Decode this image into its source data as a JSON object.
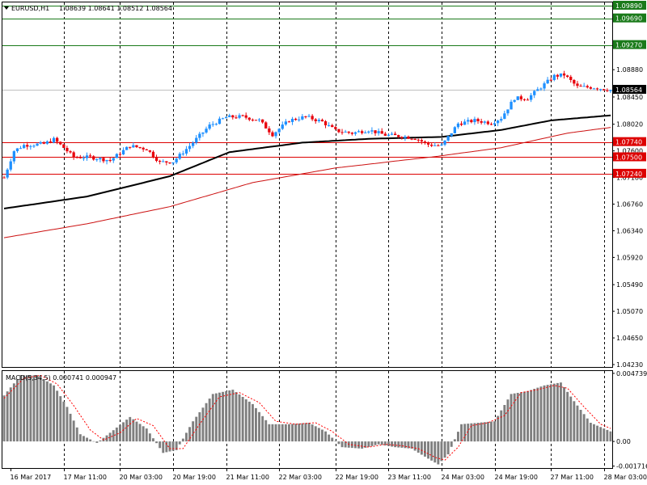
{
  "header": {
    "symbol": "EURUSD,H1",
    "ohlc": "1.08639 1.08641 1.08512 1.08564"
  },
  "macd": {
    "label": "MACD(5,34,5) 0.000741 0.000947"
  },
  "colors": {
    "bull": "#1e90ff",
    "bear": "#e8000b",
    "ma_fast": "#000000",
    "ma_slow": "#cc1111",
    "res_green": "#1a7a1a",
    "sup_red": "#dd0000",
    "histogram": "#7f7f7f",
    "signal": "#ff0000"
  },
  "chart_data": [
    {
      "type": "candlestick",
      "title": "EURUSD,H1",
      "ylim": [
        1.0423,
        1.0989
      ],
      "y_ticks": [
        "1.08880",
        "1.08450",
        "1.08020",
        "1.07600",
        "1.07180",
        "1.06760",
        "1.06340",
        "1.05920",
        "1.05490",
        "1.05070",
        "1.04650",
        "1.04230"
      ],
      "x_ticks": [
        "16 Mar 2017",
        "17 Mar 11:00",
        "20 Mar 03:00",
        "20 Mar 19:00",
        "21 Mar 11:00",
        "22 Mar 03:00",
        "22 Mar 19:00",
        "23 Mar 11:00",
        "24 Mar 03:00",
        "24 Mar 19:00",
        "27 Mar 11:00",
        "28 Mar 03:00"
      ],
      "current_price": "1.08564",
      "levels": [
        {
          "value": 1.0989,
          "label": "1.09890",
          "kind": "resistance"
        },
        {
          "value": 1.0969,
          "label": "1.09690",
          "kind": "resistance"
        },
        {
          "value": 1.0927,
          "label": "1.09270",
          "kind": "resistance"
        },
        {
          "value": 1.0774,
          "label": "1.07740",
          "kind": "support"
        },
        {
          "value": 1.075,
          "label": "1.07500",
          "kind": "support"
        },
        {
          "value": 1.0724,
          "label": "1.07240",
          "kind": "support"
        }
      ],
      "close_path": [
        [
          0,
          1.0718
        ],
        [
          3,
          1.076
        ],
        [
          6,
          1.0769
        ],
        [
          12,
          1.0771
        ],
        [
          15,
          1.0778
        ],
        [
          18,
          1.0765
        ],
        [
          21,
          1.075
        ],
        [
          26,
          1.075
        ],
        [
          32,
          1.0745
        ],
        [
          38,
          1.0768
        ],
        [
          43,
          1.0763
        ],
        [
          47,
          1.0742
        ],
        [
          51,
          1.0743
        ],
        [
          56,
          1.0768
        ],
        [
          62,
          1.08
        ],
        [
          67,
          1.0813
        ],
        [
          72,
          1.0814
        ],
        [
          77,
          1.0808
        ],
        [
          81,
          1.0786
        ],
        [
          86,
          1.0808
        ],
        [
          91,
          1.0814
        ],
        [
          96,
          1.0806
        ],
        [
          100,
          1.0792
        ],
        [
          105,
          1.0788
        ],
        [
          110,
          1.0793
        ],
        [
          115,
          1.0785
        ],
        [
          120,
          1.0783
        ],
        [
          124,
          1.078
        ],
        [
          128,
          1.077
        ],
        [
          132,
          1.0768
        ],
        [
          137,
          1.0803
        ],
        [
          142,
          1.0808
        ],
        [
          147,
          1.0804
        ],
        [
          150,
          1.0812
        ],
        [
          154,
          1.0843
        ],
        [
          158,
          1.0843
        ],
        [
          163,
          1.0865
        ],
        [
          166,
          1.0878
        ],
        [
          169,
          1.088
        ],
        [
          173,
          1.0861
        ],
        [
          178,
          1.086
        ],
        [
          183,
          1.0856
        ]
      ],
      "moving_averages": [
        {
          "color_key": "ma_fast",
          "values": [
            [
              0,
              1.0669
            ],
            [
              25,
              1.0688
            ],
            [
              50,
              1.072
            ],
            [
              68,
              1.0758
            ],
            [
              90,
              1.0773
            ],
            [
              110,
              1.0779
            ],
            [
              132,
              1.0782
            ],
            [
              150,
              1.0793
            ],
            [
              165,
              1.0808
            ],
            [
              183,
              1.0816
            ]
          ]
        },
        {
          "color_key": "ma_slow",
          "values": [
            [
              0,
              1.0623
            ],
            [
              25,
              1.0645
            ],
            [
              50,
              1.0672
            ],
            [
              75,
              1.071
            ],
            [
              100,
              1.0733
            ],
            [
              130,
              1.0751
            ],
            [
              150,
              1.0765
            ],
            [
              170,
              1.0788
            ],
            [
              183,
              1.0797
            ]
          ]
        }
      ]
    },
    {
      "type": "bar",
      "title": "MACD(5,34,5) 0.000741 0.000947",
      "ylim": [
        -0.00185,
        0.0049
      ],
      "y_ticks": [
        "0.004739",
        "0.00",
        "-0.001716"
      ],
      "histogram_path": [
        [
          0,
          0.0032
        ],
        [
          5,
          0.0046
        ],
        [
          10,
          0.0046
        ],
        [
          15,
          0.0039
        ],
        [
          19,
          0.0024
        ],
        [
          23,
          0.0005
        ],
        [
          28,
          -0.0001
        ],
        [
          32,
          0.0006
        ],
        [
          38,
          0.0017
        ],
        [
          43,
          0.0009
        ],
        [
          48,
          -0.0008
        ],
        [
          52,
          -0.0006
        ],
        [
          57,
          0.0014
        ],
        [
          63,
          0.0033
        ],
        [
          69,
          0.0036
        ],
        [
          75,
          0.0026
        ],
        [
          80,
          0.0012
        ],
        [
          86,
          0.0012
        ],
        [
          92,
          0.0013
        ],
        [
          97,
          0.0007
        ],
        [
          102,
          -0.0004
        ],
        [
          108,
          -0.0005
        ],
        [
          113,
          -0.0002
        ],
        [
          118,
          -0.0004
        ],
        [
          123,
          -0.0005
        ],
        [
          128,
          -0.0012
        ],
        [
          131,
          -0.0016
        ],
        [
          134,
          -0.0009
        ],
        [
          138,
          0.0012
        ],
        [
          143,
          0.0013
        ],
        [
          148,
          0.0014
        ],
        [
          153,
          0.0033
        ],
        [
          158,
          0.0035
        ],
        [
          163,
          0.0039
        ],
        [
          168,
          0.0041
        ],
        [
          172,
          0.0028
        ],
        [
          177,
          0.0013
        ],
        [
          183,
          0.0007
        ]
      ],
      "signal_path": [
        [
          0,
          0.003
        ],
        [
          6,
          0.0044
        ],
        [
          11,
          0.0046
        ],
        [
          16,
          0.004
        ],
        [
          21,
          0.0025
        ],
        [
          26,
          0.0008
        ],
        [
          30,
          0.0001
        ],
        [
          35,
          0.0006
        ],
        [
          40,
          0.0016
        ],
        [
          45,
          0.0011
        ],
        [
          50,
          -0.0005
        ],
        [
          54,
          -0.0005
        ],
        [
          59,
          0.0012
        ],
        [
          65,
          0.0031
        ],
        [
          71,
          0.0034
        ],
        [
          77,
          0.0027
        ],
        [
          82,
          0.0014
        ],
        [
          88,
          0.0012
        ],
        [
          94,
          0.0013
        ],
        [
          99,
          0.0007
        ],
        [
          104,
          -0.0002
        ],
        [
          110,
          -0.0004
        ],
        [
          115,
          -0.0002
        ],
        [
          120,
          -0.0003
        ],
        [
          125,
          -0.0005
        ],
        [
          130,
          -0.0011
        ],
        [
          133,
          -0.0013
        ],
        [
          137,
          -0.0004
        ],
        [
          141,
          0.0011
        ],
        [
          146,
          0.0013
        ],
        [
          151,
          0.0018
        ],
        [
          156,
          0.0034
        ],
        [
          161,
          0.0036
        ],
        [
          166,
          0.0039
        ],
        [
          170,
          0.0037
        ],
        [
          175,
          0.0024
        ],
        [
          180,
          0.0012
        ],
        [
          183,
          0.0009
        ]
      ]
    }
  ]
}
